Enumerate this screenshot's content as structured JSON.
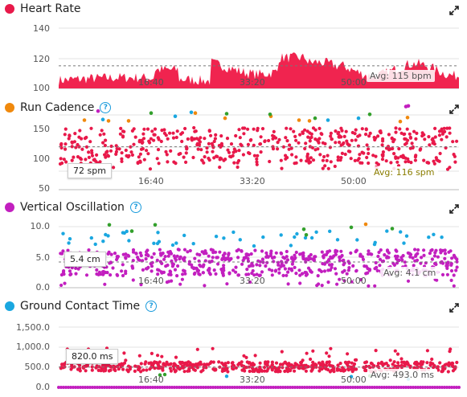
{
  "panels": [
    {
      "title": "Heart Rate",
      "dot_color": "#e8194a",
      "help": false,
      "y_ticks": [
        "140",
        "120",
        "100"
      ],
      "x_ticks": [
        "16:40",
        "33:20",
        "50:00"
      ],
      "avg_label": "Avg: 115 bpm",
      "avg_color": "#555555",
      "hover_value": ""
    },
    {
      "title": "Run Cadence",
      "dot_color": "#f0890d",
      "help": true,
      "help_glyph": "?",
      "y_ticks": [
        "150",
        "100",
        "50"
      ],
      "x_ticks": [
        "16:40",
        "33:20",
        "50:00"
      ],
      "avg_label": "Avg: 116 spm",
      "avg_color": "#8a7d00",
      "hover_value": "72 spm"
    },
    {
      "title": "Vertical Oscillation",
      "dot_color": "#c21fbf",
      "help": true,
      "help_glyph": "?",
      "y_ticks": [
        "10.0",
        "5.0",
        "0.0"
      ],
      "x_ticks": [
        "16:40",
        "33:20",
        "50:00"
      ],
      "avg_label": "Avg: 4.1 cm",
      "avg_color": "#555555",
      "hover_value": "5.4 cm"
    },
    {
      "title": "Ground Contact Time",
      "dot_color": "#1aa7e0",
      "help": true,
      "help_glyph": "?",
      "y_ticks": [
        "1,500.0",
        "1,000.0",
        "500.0",
        "0.0"
      ],
      "x_ticks": [
        "16:40",
        "33:20",
        "50:00"
      ],
      "avg_label": "Avg: 493.0 ms",
      "avg_color": "#555555",
      "hover_value": "820.0 ms"
    }
  ],
  "chart_data": [
    {
      "type": "area",
      "title": "Heart Rate",
      "ylim": [
        100,
        140
      ],
      "average": 115,
      "x_ticks": [
        "16:40",
        "33:20",
        "50:00"
      ],
      "color": "#f0244f"
    },
    {
      "type": "scatter",
      "title": "Run Cadence",
      "ylim": [
        50,
        175
      ],
      "average": 116,
      "x_ticks": [
        "16:40",
        "33:20",
        "50:00"
      ],
      "colors": {
        "main": "#e8194a",
        "high": "#f0890d",
        "peak": "#33a02c",
        "lift": "#1aa7e0",
        "extra": "#c21fbf"
      }
    },
    {
      "type": "scatter",
      "title": "Vertical Oscillation",
      "ylim": [
        0,
        11
      ],
      "average": 4.1,
      "x_ticks": [
        "16:40",
        "33:20",
        "50:00"
      ],
      "colors": {
        "main": "#c21fbf",
        "high": "#1aa7e0",
        "peak": "#33a02c",
        "extra": "#f0890d"
      }
    },
    {
      "type": "scatter",
      "title": "Ground Contact Time",
      "ylim": [
        0,
        1600
      ],
      "average": 493,
      "x_ticks": [
        "16:40",
        "33:20",
        "50:00"
      ],
      "colors": {
        "main": "#e8194a",
        "high": "#1aa7e0",
        "peak": "#33a02c",
        "base": "#c21fbf"
      }
    }
  ]
}
